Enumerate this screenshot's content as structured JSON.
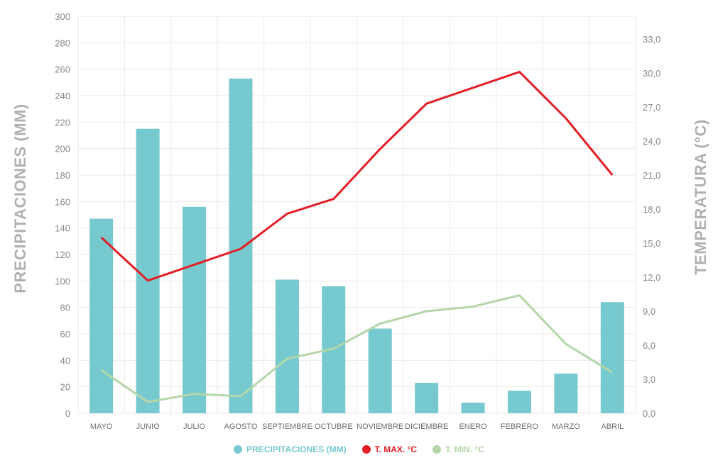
{
  "colors": {
    "bars": "#76c9cf",
    "tmax": "#e21f26",
    "tmin": "#b4d6a9",
    "grid": "#f2e6e6",
    "tick": "#8a8a8a"
  },
  "chart_data": {
    "type": "bar",
    "categories": [
      "MAYO",
      "JUNIO",
      "JULIO",
      "AGOSTO",
      "SEPTIEMBRE",
      "OCTUBRE",
      "NOVIEMBRE",
      "DICIEMBRE",
      "ENERO",
      "FEBRERO",
      "MARZO",
      "ABRIL"
    ],
    "ylabel": "PRECIPITACIONES (MM)",
    "y2label": "TEMPERATURA (°C)",
    "ylim": [
      0,
      300
    ],
    "y2lim": [
      0,
      35
    ],
    "yticks": [
      "0",
      "20",
      "40",
      "60",
      "80",
      "100",
      "120",
      "140",
      "160",
      "180",
      "200",
      "220",
      "240",
      "260",
      "280",
      "300"
    ],
    "y2ticks": [
      "0,0",
      "3,0",
      "6,0",
      "9,0",
      "12,0",
      "15,0",
      "18,0",
      "21,0",
      "24,0",
      "27,0",
      "30,0",
      "33,0"
    ],
    "grid": true,
    "legend_position": "bottom",
    "series": [
      {
        "name": "PRECIPITACIONES (MM)",
        "type": "bar",
        "axis": "left",
        "values": [
          147,
          215,
          156,
          253,
          101,
          96,
          64,
          23,
          8,
          17,
          30,
          84
        ]
      },
      {
        "name": "T. MAX. °C",
        "type": "line",
        "axis": "right",
        "values": [
          15.5,
          11.7,
          13.1,
          14.5,
          17.6,
          18.9,
          23.3,
          27.3,
          28.7,
          30.1,
          26.0,
          21.0
        ]
      },
      {
        "name": "T. MIN. °C",
        "type": "line",
        "axis": "right",
        "values": [
          3.8,
          1.0,
          1.7,
          1.5,
          4.8,
          5.7,
          7.9,
          9.0,
          9.4,
          10.4,
          6.1,
          3.6
        ]
      }
    ]
  }
}
